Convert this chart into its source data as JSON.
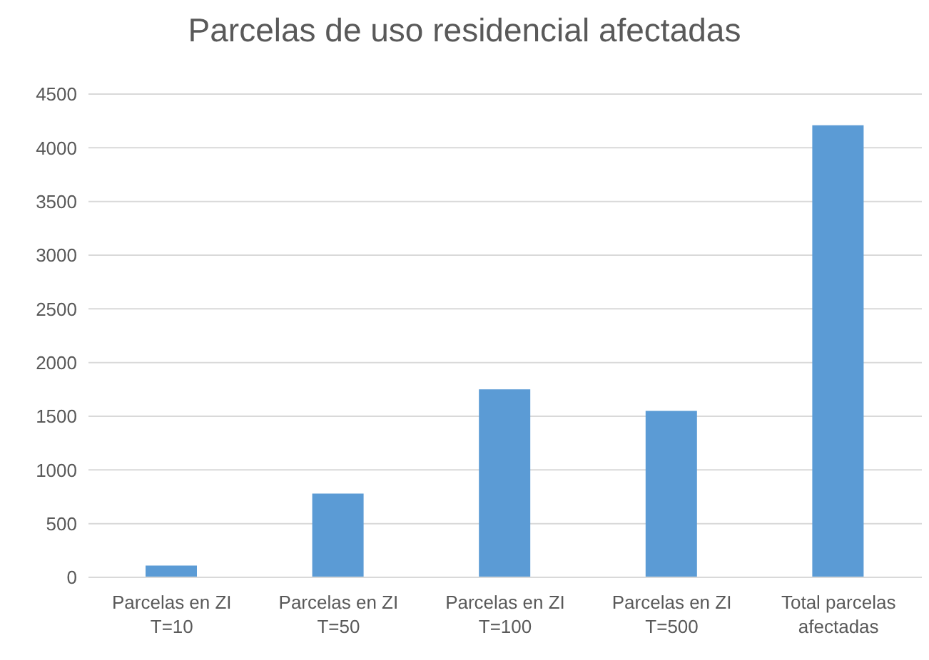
{
  "chart_data": {
    "type": "bar",
    "title": "Parcelas de uso residencial afectadas",
    "categories": [
      "Parcelas en ZI T=10",
      "Parcelas en ZI T=50",
      "Parcelas en ZI T=100",
      "Parcelas en ZI T=500",
      "Total parcelas afectadas"
    ],
    "values": [
      110,
      780,
      1750,
      1550,
      4210
    ],
    "color": "#5b9bd5",
    "ylim": [
      0,
      4500
    ],
    "yticks": [
      0,
      500,
      1000,
      1500,
      2000,
      2500,
      3000,
      3500,
      4000,
      4500
    ],
    "grid": "y",
    "legend": false
  }
}
